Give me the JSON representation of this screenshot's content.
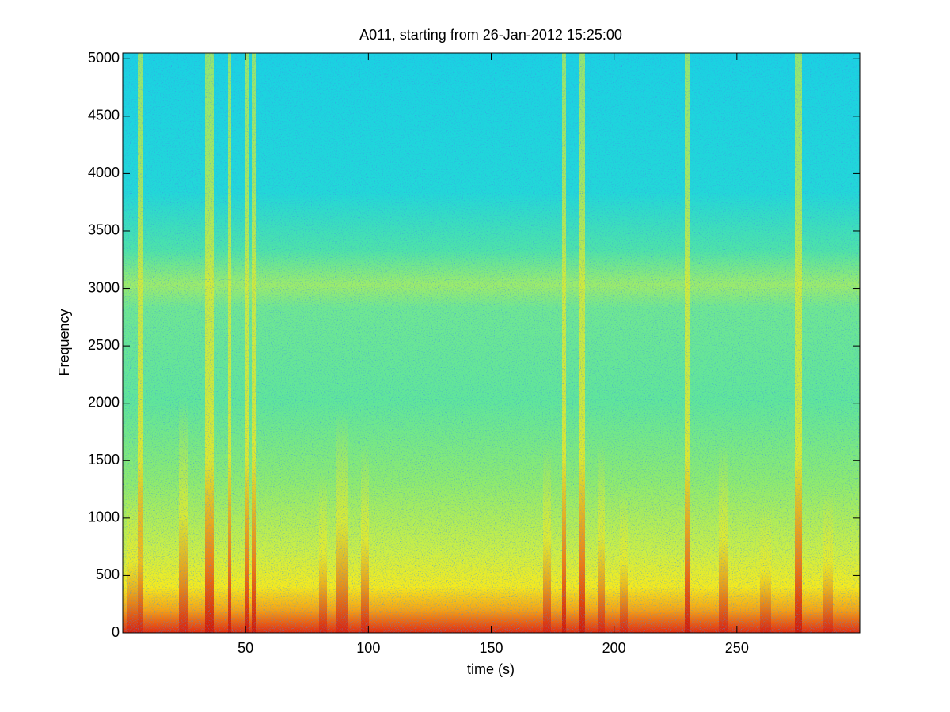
{
  "chart_data": {
    "type": "spectrogram",
    "title": "A011, starting from 26-Jan-2012 15:25:00",
    "xlabel": "time (s)",
    "ylabel": "Frequency",
    "xlim": [
      0,
      300
    ],
    "xticks": [
      50,
      100,
      150,
      200,
      250
    ],
    "ylim": [
      0,
      5050
    ],
    "yticks": [
      0,
      500,
      1000,
      1500,
      2000,
      2500,
      3000,
      3500,
      4000,
      4500,
      5000
    ]
  }
}
